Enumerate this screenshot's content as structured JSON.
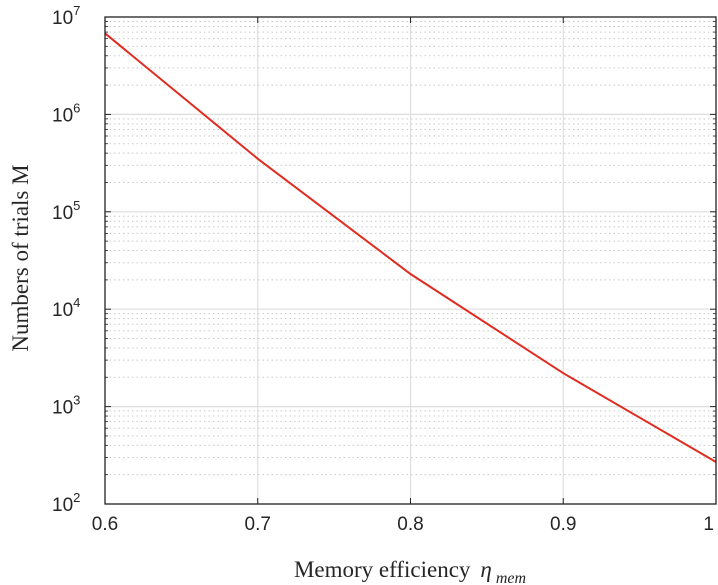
{
  "chart_data": {
    "type": "line",
    "xlabel": "Memory efficiency",
    "xlabel_symbol": "η",
    "xlabel_subscript": "mem",
    "ylabel": "Numbers of trials M",
    "xlim": [
      0.6,
      1.0
    ],
    "ylim": [
      100,
      10000000
    ],
    "yscale": "log",
    "grid": true,
    "minor_grid": true,
    "x_ticks": [
      "0.6",
      "0.7",
      "0.8",
      "0.9",
      "1"
    ],
    "y_ticks": [
      {
        "base": "10",
        "exp": "2"
      },
      {
        "base": "10",
        "exp": "3"
      },
      {
        "base": "10",
        "exp": "4"
      },
      {
        "base": "10",
        "exp": "5"
      },
      {
        "base": "10",
        "exp": "6"
      },
      {
        "base": "10",
        "exp": "7"
      }
    ],
    "series": [
      {
        "color": "#e02b20",
        "x": [
          0.6,
          0.7,
          0.8,
          0.9,
          1.0
        ],
        "y": [
          6800000,
          350000,
          23000,
          2200,
          270
        ]
      }
    ]
  }
}
